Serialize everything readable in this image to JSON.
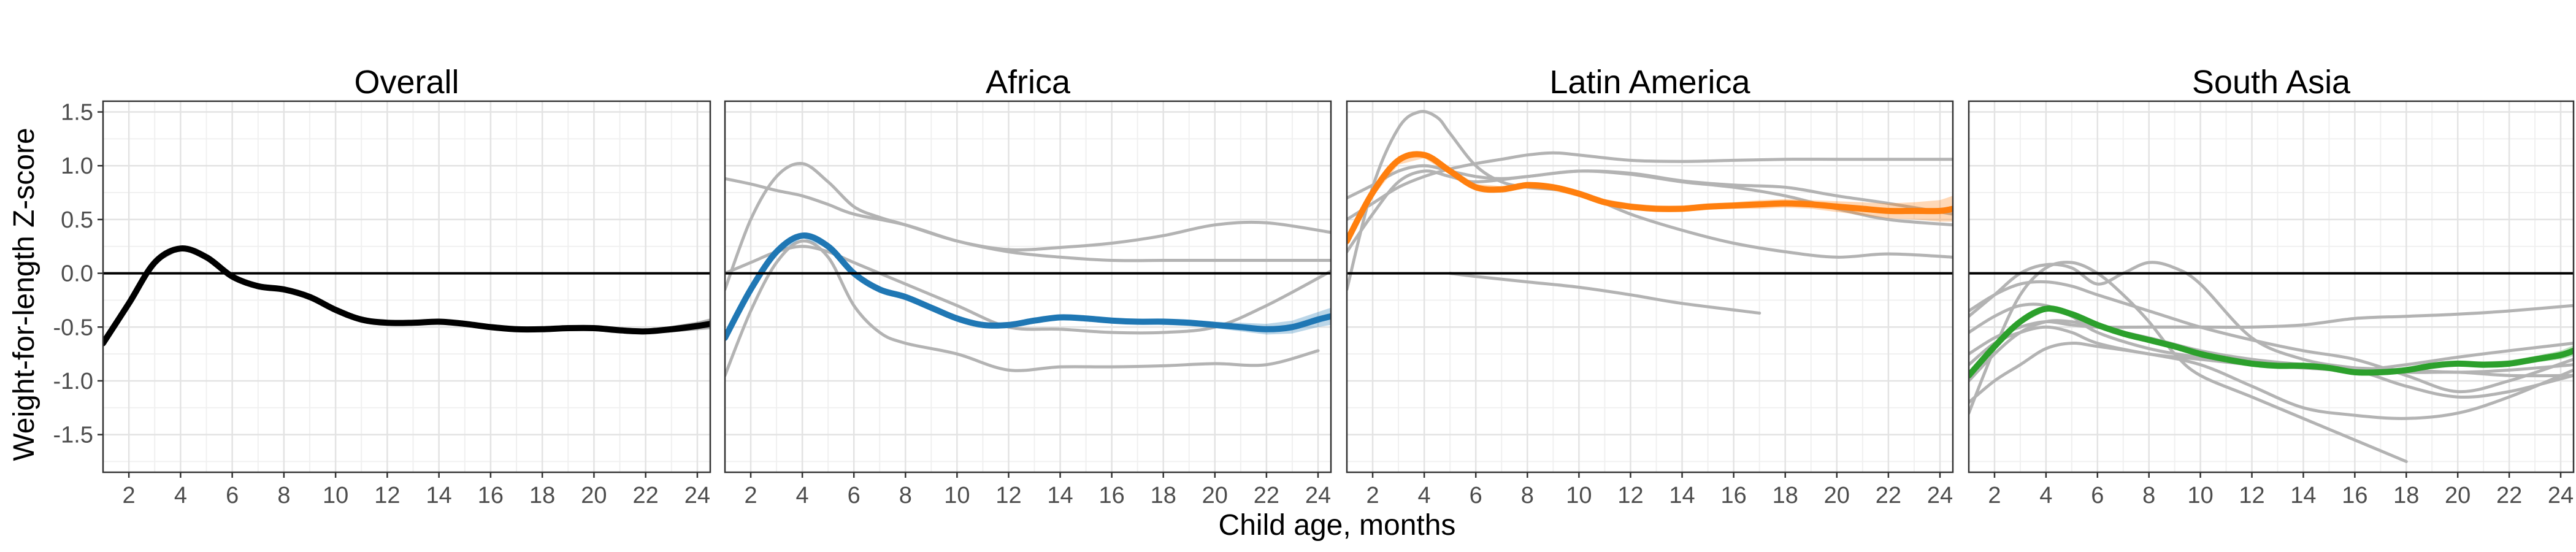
{
  "chart_data": {
    "type": "line",
    "xlabel": "Child age, months",
    "ylabel": "Weight-for-length Z-score",
    "xlim": [
      1,
      24.5
    ],
    "ylim": [
      -1.85,
      1.6
    ],
    "xticks": [
      2,
      4,
      6,
      8,
      10,
      12,
      14,
      16,
      18,
      20,
      22,
      24
    ],
    "yticks": [
      -1.5,
      -1.0,
      -0.5,
      0.0,
      0.5,
      1.0,
      1.5
    ],
    "ytick_labels": [
      "-1.5",
      "-1.0",
      "-0.5",
      "0.0",
      "0.5",
      "1.0",
      "1.5"
    ],
    "reference_line_y": 0,
    "grid": true,
    "panels": [
      {
        "title": "Overall",
        "color": "#000000",
        "x": [
          1,
          2,
          3,
          4,
          5,
          6,
          7,
          8,
          9,
          10,
          11,
          12,
          13,
          14,
          15,
          16,
          17,
          18,
          19,
          20,
          21,
          22,
          23,
          24,
          24.5
        ],
        "mean": [
          -0.65,
          -0.28,
          0.1,
          0.23,
          0.15,
          -0.03,
          -0.12,
          -0.15,
          -0.22,
          -0.34,
          -0.43,
          -0.46,
          -0.46,
          -0.45,
          -0.47,
          -0.5,
          -0.52,
          -0.52,
          -0.51,
          -0.51,
          -0.53,
          -0.54,
          -0.52,
          -0.49,
          -0.47
        ],
        "ci": [
          0.02,
          0.02,
          0.01,
          0.01,
          0.01,
          0.01,
          0.01,
          0.01,
          0.01,
          0.01,
          0.01,
          0.01,
          0.01,
          0.01,
          0.01,
          0.01,
          0.01,
          0.01,
          0.01,
          0.02,
          0.02,
          0.02,
          0.03,
          0.04,
          0.05
        ],
        "studies": []
      },
      {
        "title": "Africa",
        "color": "#1f77b4",
        "x": [
          1,
          2,
          3,
          4,
          5,
          6,
          7,
          8,
          9,
          10,
          11,
          12,
          13,
          14,
          15,
          16,
          17,
          18,
          19,
          20,
          21,
          22,
          23,
          24,
          24.5
        ],
        "mean": [
          -0.6,
          -0.15,
          0.2,
          0.35,
          0.25,
          0.0,
          -0.15,
          -0.22,
          -0.32,
          -0.42,
          -0.48,
          -0.48,
          -0.44,
          -0.41,
          -0.42,
          -0.44,
          -0.45,
          -0.45,
          -0.46,
          -0.48,
          -0.5,
          -0.52,
          -0.5,
          -0.43,
          -0.4
        ],
        "ci": [
          0.03,
          0.02,
          0.02,
          0.02,
          0.02,
          0.02,
          0.02,
          0.02,
          0.02,
          0.02,
          0.02,
          0.02,
          0.02,
          0.02,
          0.02,
          0.02,
          0.02,
          0.03,
          0.03,
          0.03,
          0.04,
          0.05,
          0.06,
          0.07,
          0.08
        ],
        "studies": [
          {
            "x": [
              1,
              2,
              3,
              4,
              5,
              6,
              8,
              10,
              12,
              14,
              16,
              18,
              20,
              22,
              24.5
            ],
            "y": [
              0.88,
              0.83,
              0.77,
              0.72,
              0.64,
              0.55,
              0.45,
              0.3,
              0.2,
              0.15,
              0.12,
              0.12,
              0.12,
              0.12,
              0.12
            ]
          },
          {
            "x": [
              1,
              2,
              3,
              4,
              5,
              6,
              7,
              8,
              10,
              12,
              14,
              16,
              18,
              20,
              22,
              24.5
            ],
            "y": [
              -0.15,
              0.5,
              0.9,
              1.02,
              0.85,
              0.62,
              0.52,
              0.45,
              0.3,
              0.22,
              0.24,
              0.28,
              0.35,
              0.45,
              0.47,
              0.38
            ]
          },
          {
            "x": [
              1,
              2,
              3,
              4,
              5,
              6,
              7,
              8,
              10,
              12,
              14,
              16,
              18,
              20,
              22,
              24
            ],
            "y": [
              -0.95,
              -0.35,
              0.1,
              0.3,
              0.15,
              -0.3,
              -0.55,
              -0.65,
              -0.75,
              -0.9,
              -0.87,
              -0.87,
              -0.86,
              -0.84,
              -0.85,
              -0.72
            ]
          },
          {
            "x": [
              1,
              2,
              3,
              4,
              5,
              6,
              7,
              8,
              10,
              12,
              14,
              16,
              18,
              20,
              22,
              24.5
            ],
            "y": [
              0.0,
              0.1,
              0.2,
              0.25,
              0.2,
              0.1,
              0.0,
              -0.1,
              -0.3,
              -0.5,
              -0.52,
              -0.55,
              -0.55,
              -0.5,
              -0.3,
              0.02
            ]
          }
        ]
      },
      {
        "title": "Latin America",
        "color": "#ff7f0e",
        "x": [
          1,
          2,
          3,
          4,
          5,
          6,
          7,
          8,
          9,
          10,
          11,
          12,
          13,
          14,
          15,
          16,
          17,
          18,
          19,
          20,
          21,
          22,
          23,
          24,
          24.5
        ],
        "mean": [
          0.3,
          0.75,
          1.05,
          1.1,
          0.95,
          0.8,
          0.78,
          0.82,
          0.8,
          0.74,
          0.66,
          0.62,
          0.6,
          0.6,
          0.62,
          0.63,
          0.64,
          0.65,
          0.64,
          0.62,
          0.6,
          0.58,
          0.58,
          0.58,
          0.6
        ],
        "ci": [
          0.05,
          0.04,
          0.04,
          0.03,
          0.03,
          0.03,
          0.03,
          0.03,
          0.03,
          0.03,
          0.03,
          0.03,
          0.03,
          0.03,
          0.03,
          0.03,
          0.04,
          0.04,
          0.04,
          0.05,
          0.06,
          0.07,
          0.08,
          0.1,
          0.12
        ],
        "studies": [
          {
            "x": [
              1,
              2,
              3,
              3.8,
              4.5,
              5,
              6,
              7,
              8,
              9,
              10,
              12,
              14,
              16,
              18,
              20,
              22,
              24.5
            ],
            "y": [
              -0.15,
              0.8,
              1.35,
              1.5,
              1.45,
              1.3,
              1.0,
              0.85,
              0.8,
              0.78,
              0.75,
              0.55,
              0.4,
              0.28,
              0.2,
              0.15,
              0.18,
              0.15
            ]
          },
          {
            "x": [
              1,
              2,
              3,
              4,
              5,
              6,
              7,
              8,
              10,
              12,
              14,
              16,
              18,
              20,
              22,
              24.5
            ],
            "y": [
              0.7,
              0.82,
              0.95,
              1.0,
              0.95,
              0.9,
              0.88,
              0.9,
              0.95,
              0.93,
              0.86,
              0.82,
              0.8,
              0.72,
              0.65,
              0.55
            ]
          },
          {
            "x": [
              1,
              2,
              3,
              4,
              5,
              6,
              7,
              8,
              9,
              10,
              12,
              14,
              16,
              18,
              20,
              22,
              24.5
            ],
            "y": [
              0.5,
              0.65,
              0.8,
              0.9,
              0.97,
              1.02,
              1.06,
              1.1,
              1.12,
              1.1,
              1.05,
              1.04,
              1.05,
              1.06,
              1.06,
              1.06,
              1.06
            ]
          },
          {
            "x": [
              1,
              2,
              3,
              4,
              5,
              6,
              8,
              10,
              12,
              14,
              16,
              18,
              20,
              22,
              24.5
            ],
            "y": [
              0.2,
              0.55,
              0.85,
              0.95,
              0.9,
              0.85,
              0.9,
              0.95,
              0.92,
              0.85,
              0.8,
              0.72,
              0.6,
              0.5,
              0.45
            ]
          },
          {
            "x": [
              5,
              6,
              8,
              10,
              12,
              14,
              17
            ],
            "y": [
              0.0,
              -0.03,
              -0.08,
              -0.13,
              -0.2,
              -0.28,
              -0.37
            ]
          }
        ]
      },
      {
        "title": "South Asia",
        "color": "#2ca02c",
        "x": [
          1,
          2,
          3,
          4,
          5,
          6,
          7,
          8,
          9,
          10,
          11,
          12,
          13,
          14,
          15,
          16,
          17,
          18,
          19,
          20,
          21,
          22,
          23,
          24,
          24.5
        ],
        "mean": [
          -0.95,
          -0.68,
          -0.45,
          -0.33,
          -0.38,
          -0.48,
          -0.56,
          -0.62,
          -0.68,
          -0.75,
          -0.8,
          -0.84,
          -0.86,
          -0.86,
          -0.88,
          -0.92,
          -0.92,
          -0.9,
          -0.86,
          -0.84,
          -0.85,
          -0.84,
          -0.8,
          -0.76,
          -0.72
        ],
        "ci": [
          0.03,
          0.02,
          0.02,
          0.02,
          0.02,
          0.02,
          0.02,
          0.02,
          0.02,
          0.02,
          0.02,
          0.02,
          0.02,
          0.02,
          0.02,
          0.02,
          0.02,
          0.02,
          0.02,
          0.02,
          0.03,
          0.03,
          0.03,
          0.04,
          0.05
        ],
        "studies": [
          {
            "x": [
              1,
              2,
              3,
              4,
              5,
              6,
              7,
              8,
              9,
              10,
              12,
              14,
              16,
              18
            ],
            "y": [
              -1.3,
              -0.7,
              -0.2,
              0.05,
              0.1,
              0.0,
              -0.2,
              -0.45,
              -0.75,
              -0.95,
              -1.15,
              -1.35,
              -1.55,
              -1.75
            ]
          },
          {
            "x": [
              1,
              2,
              3,
              4,
              5,
              6,
              7,
              8,
              9,
              10,
              12,
              14,
              16,
              18,
              20,
              22,
              24.5
            ],
            "y": [
              -0.4,
              -0.2,
              0.0,
              0.08,
              0.05,
              -0.1,
              0.0,
              0.1,
              0.05,
              -0.1,
              -0.6,
              -0.8,
              -0.88,
              -0.92,
              -0.92,
              -0.95,
              -0.95
            ]
          },
          {
            "x": [
              1,
              2,
              3,
              4,
              5,
              6,
              8,
              10,
              12,
              14,
              16,
              18,
              20,
              22,
              24.5
            ],
            "y": [
              -0.75,
              -0.6,
              -0.5,
              -0.45,
              -0.48,
              -0.5,
              -0.5,
              -0.5,
              -0.5,
              -0.48,
              -0.42,
              -0.4,
              -0.38,
              -0.35,
              -0.3
            ]
          },
          {
            "x": [
              1,
              2,
              3,
              4,
              5,
              6,
              8,
              10,
              12,
              14,
              16,
              18,
              20,
              22,
              24.5
            ],
            "y": [
              -1.0,
              -0.75,
              -0.55,
              -0.45,
              -0.45,
              -0.5,
              -0.6,
              -0.72,
              -0.8,
              -0.85,
              -0.9,
              -1.05,
              -1.15,
              -1.1,
              -0.95
            ]
          },
          {
            "x": [
              1,
              2,
              3,
              4,
              5,
              6,
              8,
              10,
              12,
              14,
              16,
              18,
              20,
              22,
              24.5
            ],
            "y": [
              -1.2,
              -1.0,
              -0.85,
              -0.7,
              -0.65,
              -0.68,
              -0.75,
              -0.85,
              -1.05,
              -1.25,
              -1.32,
              -1.35,
              -1.3,
              -1.15,
              -0.9
            ]
          },
          {
            "x": [
              1,
              2,
              3,
              4,
              5,
              6,
              8,
              10,
              12,
              14,
              16,
              18,
              20,
              22,
              24.5
            ],
            "y": [
              -0.85,
              -0.65,
              -0.55,
              -0.5,
              -0.55,
              -0.65,
              -0.75,
              -0.8,
              -0.85,
              -0.88,
              -0.9,
              -0.85,
              -0.78,
              -0.72,
              -0.65
            ]
          },
          {
            "x": [
              1,
              2,
              3,
              4,
              5,
              6,
              8,
              10,
              12,
              14,
              16,
              18,
              20,
              22,
              24.5
            ],
            "y": [
              -0.55,
              -0.4,
              -0.3,
              -0.3,
              -0.4,
              -0.55,
              -0.7,
              -0.78,
              -0.82,
              -0.85,
              -0.88,
              -0.9,
              -0.92,
              -0.9,
              -0.85
            ]
          },
          {
            "x": [
              1,
              2,
              3,
              4,
              5,
              6,
              8,
              10,
              12,
              14,
              16,
              18,
              20,
              22,
              24.5
            ],
            "y": [
              -0.35,
              -0.2,
              -0.1,
              -0.08,
              -0.12,
              -0.2,
              -0.35,
              -0.5,
              -0.62,
              -0.72,
              -0.8,
              -0.95,
              -1.1,
              -1.0,
              -0.8
            ]
          }
        ]
      }
    ]
  }
}
